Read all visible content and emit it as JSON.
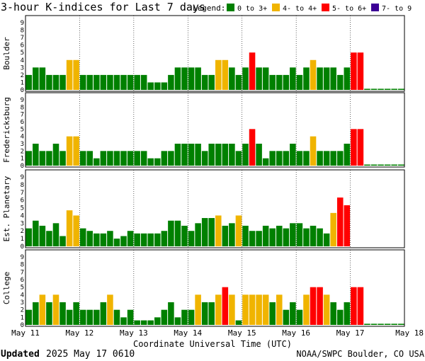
{
  "title": "3-hour K-indices for Last 7 days",
  "legend": {
    "label": "Legend:",
    "items": [
      {
        "label": "0 to 3+",
        "color": "#008000"
      },
      {
        "label": "4- to 4+",
        "color": "#f0b400"
      },
      {
        "label": "5- to 6+",
        "color": "#ff0000"
      },
      {
        "label": "7- to 9",
        "color": "#3c0096"
      }
    ]
  },
  "footer": {
    "updated_label": "Updated",
    "updated_value": "2025 May 17 0610",
    "source": "NOAA/SWPC Boulder, CO USA"
  },
  "chart_data": {
    "type": "bar",
    "xlabel": "Coordinate Universal Time (UTC)",
    "x_ticks": [
      "May 11",
      "May 12",
      "May 13",
      "May 14",
      "May 15",
      "May 16",
      "May 17",
      "May 18"
    ],
    "y_ticks": [
      "0",
      "1",
      "2",
      "3",
      "4",
      "5",
      "6",
      "7",
      "8",
      "9"
    ],
    "ylim": [
      0,
      9
    ],
    "bars_per_day": 8,
    "total_slots": 56,
    "series": [
      {
        "name": "Boulder",
        "values": [
          2,
          3,
          3,
          2,
          2,
          2,
          4,
          4,
          2,
          2,
          2,
          2,
          2,
          2,
          2,
          2,
          2,
          2,
          1,
          1,
          1,
          2,
          3,
          3,
          3,
          3,
          2,
          2,
          4,
          4,
          3,
          2,
          3,
          5,
          3,
          3,
          2,
          2,
          2,
          3,
          2,
          3,
          4,
          3,
          3,
          3,
          2,
          3,
          5,
          5,
          0.15,
          0.15,
          0.15,
          0.15,
          0.15,
          0.15
        ]
      },
      {
        "name": "Fredericksburg",
        "values": [
          2,
          3,
          2,
          2,
          3,
          2,
          4,
          4,
          2,
          2,
          1,
          2,
          2,
          2,
          2,
          2,
          2,
          2,
          1,
          1,
          2,
          2,
          3,
          3,
          3,
          3,
          2,
          3,
          3,
          3,
          3,
          2,
          3,
          5,
          3,
          1,
          2,
          2,
          2,
          3,
          2,
          2,
          4,
          2,
          2,
          2,
          2,
          3,
          5,
          5,
          0.15,
          0.15,
          0.15,
          0.15,
          0.15,
          0.15
        ]
      },
      {
        "name": "Est. Planetary",
        "values": [
          2.33,
          3.33,
          2.67,
          2,
          3,
          1.33,
          4.67,
          4,
          2.33,
          2,
          1.67,
          1.67,
          2,
          1,
          1.33,
          2,
          1.67,
          1.67,
          1.67,
          1.67,
          2,
          3.33,
          3.33,
          2.67,
          2,
          3,
          3.67,
          3.67,
          4,
          2.67,
          3,
          4,
          2.67,
          2,
          2,
          2.67,
          2.33,
          2.67,
          2.33,
          3,
          3,
          2.33,
          2.67,
          2.33,
          1.67,
          4.33,
          6.33,
          5.33,
          0,
          0,
          0,
          0,
          0,
          0,
          0,
          0
        ]
      },
      {
        "name": "College",
        "values": [
          2,
          3,
          4,
          3,
          4,
          3,
          2,
          3,
          2,
          2,
          2,
          3,
          4,
          2,
          1,
          2,
          0.6,
          0.6,
          0.6,
          1,
          2,
          3,
          1,
          2,
          2,
          4,
          3,
          3,
          4,
          5,
          4,
          0.6,
          4,
          4,
          4,
          4,
          3,
          4,
          2,
          3,
          2,
          4,
          5,
          5,
          4,
          3,
          2,
          3,
          5,
          5,
          0.15,
          0.15,
          0.15,
          0.15,
          0.15,
          0.15
        ]
      }
    ]
  }
}
